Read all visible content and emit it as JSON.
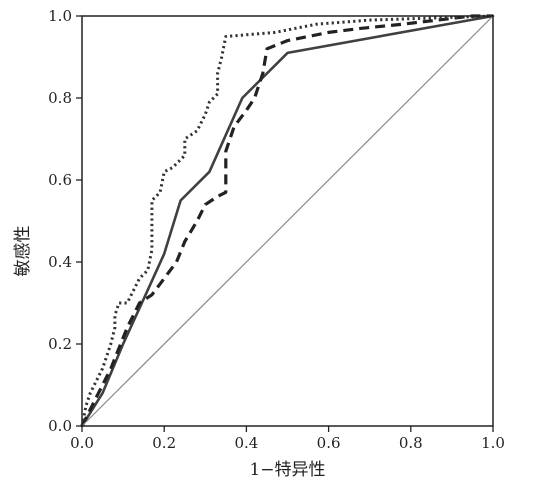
{
  "chart_data": {
    "type": "line",
    "xlabel": "1−特异性",
    "ylabel": "敏感性",
    "xlim": [
      0,
      1
    ],
    "ylim": [
      0,
      1
    ],
    "x_ticks": [
      "0.0",
      "0.2",
      "0.4",
      "0.6",
      "0.8",
      "1.0"
    ],
    "y_ticks": [
      "0.0",
      "0.2",
      "0.4",
      "0.6",
      "0.8",
      "1.0"
    ],
    "grid": false,
    "legend": "none",
    "series": [
      {
        "style": "solid",
        "color": "#404040",
        "points": [
          [
            0,
            0
          ],
          [
            0.05,
            0.08
          ],
          [
            0.1,
            0.2
          ],
          [
            0.15,
            0.31
          ],
          [
            0.2,
            0.42
          ],
          [
            0.24,
            0.55
          ],
          [
            0.31,
            0.62
          ],
          [
            0.39,
            0.8
          ],
          [
            0.5,
            0.91
          ],
          [
            1,
            1
          ]
        ]
      },
      {
        "style": "dashed",
        "color": "#222222",
        "points": [
          [
            0,
            0
          ],
          [
            0.03,
            0.06
          ],
          [
            0.07,
            0.14
          ],
          [
            0.11,
            0.24
          ],
          [
            0.14,
            0.3
          ],
          [
            0.17,
            0.32
          ],
          [
            0.2,
            0.36
          ],
          [
            0.23,
            0.4
          ],
          [
            0.25,
            0.45
          ],
          [
            0.28,
            0.5
          ],
          [
            0.3,
            0.54
          ],
          [
            0.33,
            0.56
          ],
          [
            0.35,
            0.57
          ],
          [
            0.35,
            0.67
          ],
          [
            0.37,
            0.73
          ],
          [
            0.4,
            0.77
          ],
          [
            0.42,
            0.8
          ],
          [
            0.44,
            0.86
          ],
          [
            0.45,
            0.92
          ],
          [
            0.5,
            0.94
          ],
          [
            0.6,
            0.96
          ],
          [
            0.68,
            0.97
          ],
          [
            0.78,
            0.98
          ],
          [
            0.95,
            1
          ],
          [
            1,
            1
          ]
        ]
      },
      {
        "style": "dotted",
        "color": "#333333",
        "points": [
          [
            0,
            0
          ],
          [
            0.01,
            0.05
          ],
          [
            0.02,
            0.08
          ],
          [
            0.04,
            0.12
          ],
          [
            0.05,
            0.14
          ],
          [
            0.06,
            0.17
          ],
          [
            0.07,
            0.2
          ],
          [
            0.08,
            0.24
          ],
          [
            0.08,
            0.27
          ],
          [
            0.09,
            0.3
          ],
          [
            0.11,
            0.3
          ],
          [
            0.12,
            0.32
          ],
          [
            0.13,
            0.34
          ],
          [
            0.14,
            0.36
          ],
          [
            0.16,
            0.38
          ],
          [
            0.17,
            0.43
          ],
          [
            0.17,
            0.55
          ],
          [
            0.19,
            0.57
          ],
          [
            0.2,
            0.62
          ],
          [
            0.22,
            0.63
          ],
          [
            0.25,
            0.66
          ],
          [
            0.25,
            0.7
          ],
          [
            0.28,
            0.72
          ],
          [
            0.3,
            0.76
          ],
          [
            0.31,
            0.79
          ],
          [
            0.33,
            0.81
          ],
          [
            0.33,
            0.86
          ],
          [
            0.34,
            0.9
          ],
          [
            0.35,
            0.95
          ],
          [
            0.47,
            0.96
          ],
          [
            0.57,
            0.98
          ],
          [
            0.7,
            0.99
          ],
          [
            1,
            1
          ]
        ]
      },
      {
        "style": "reference",
        "color": "#888888",
        "points": [
          [
            0,
            0
          ],
          [
            1,
            1
          ]
        ]
      }
    ]
  }
}
